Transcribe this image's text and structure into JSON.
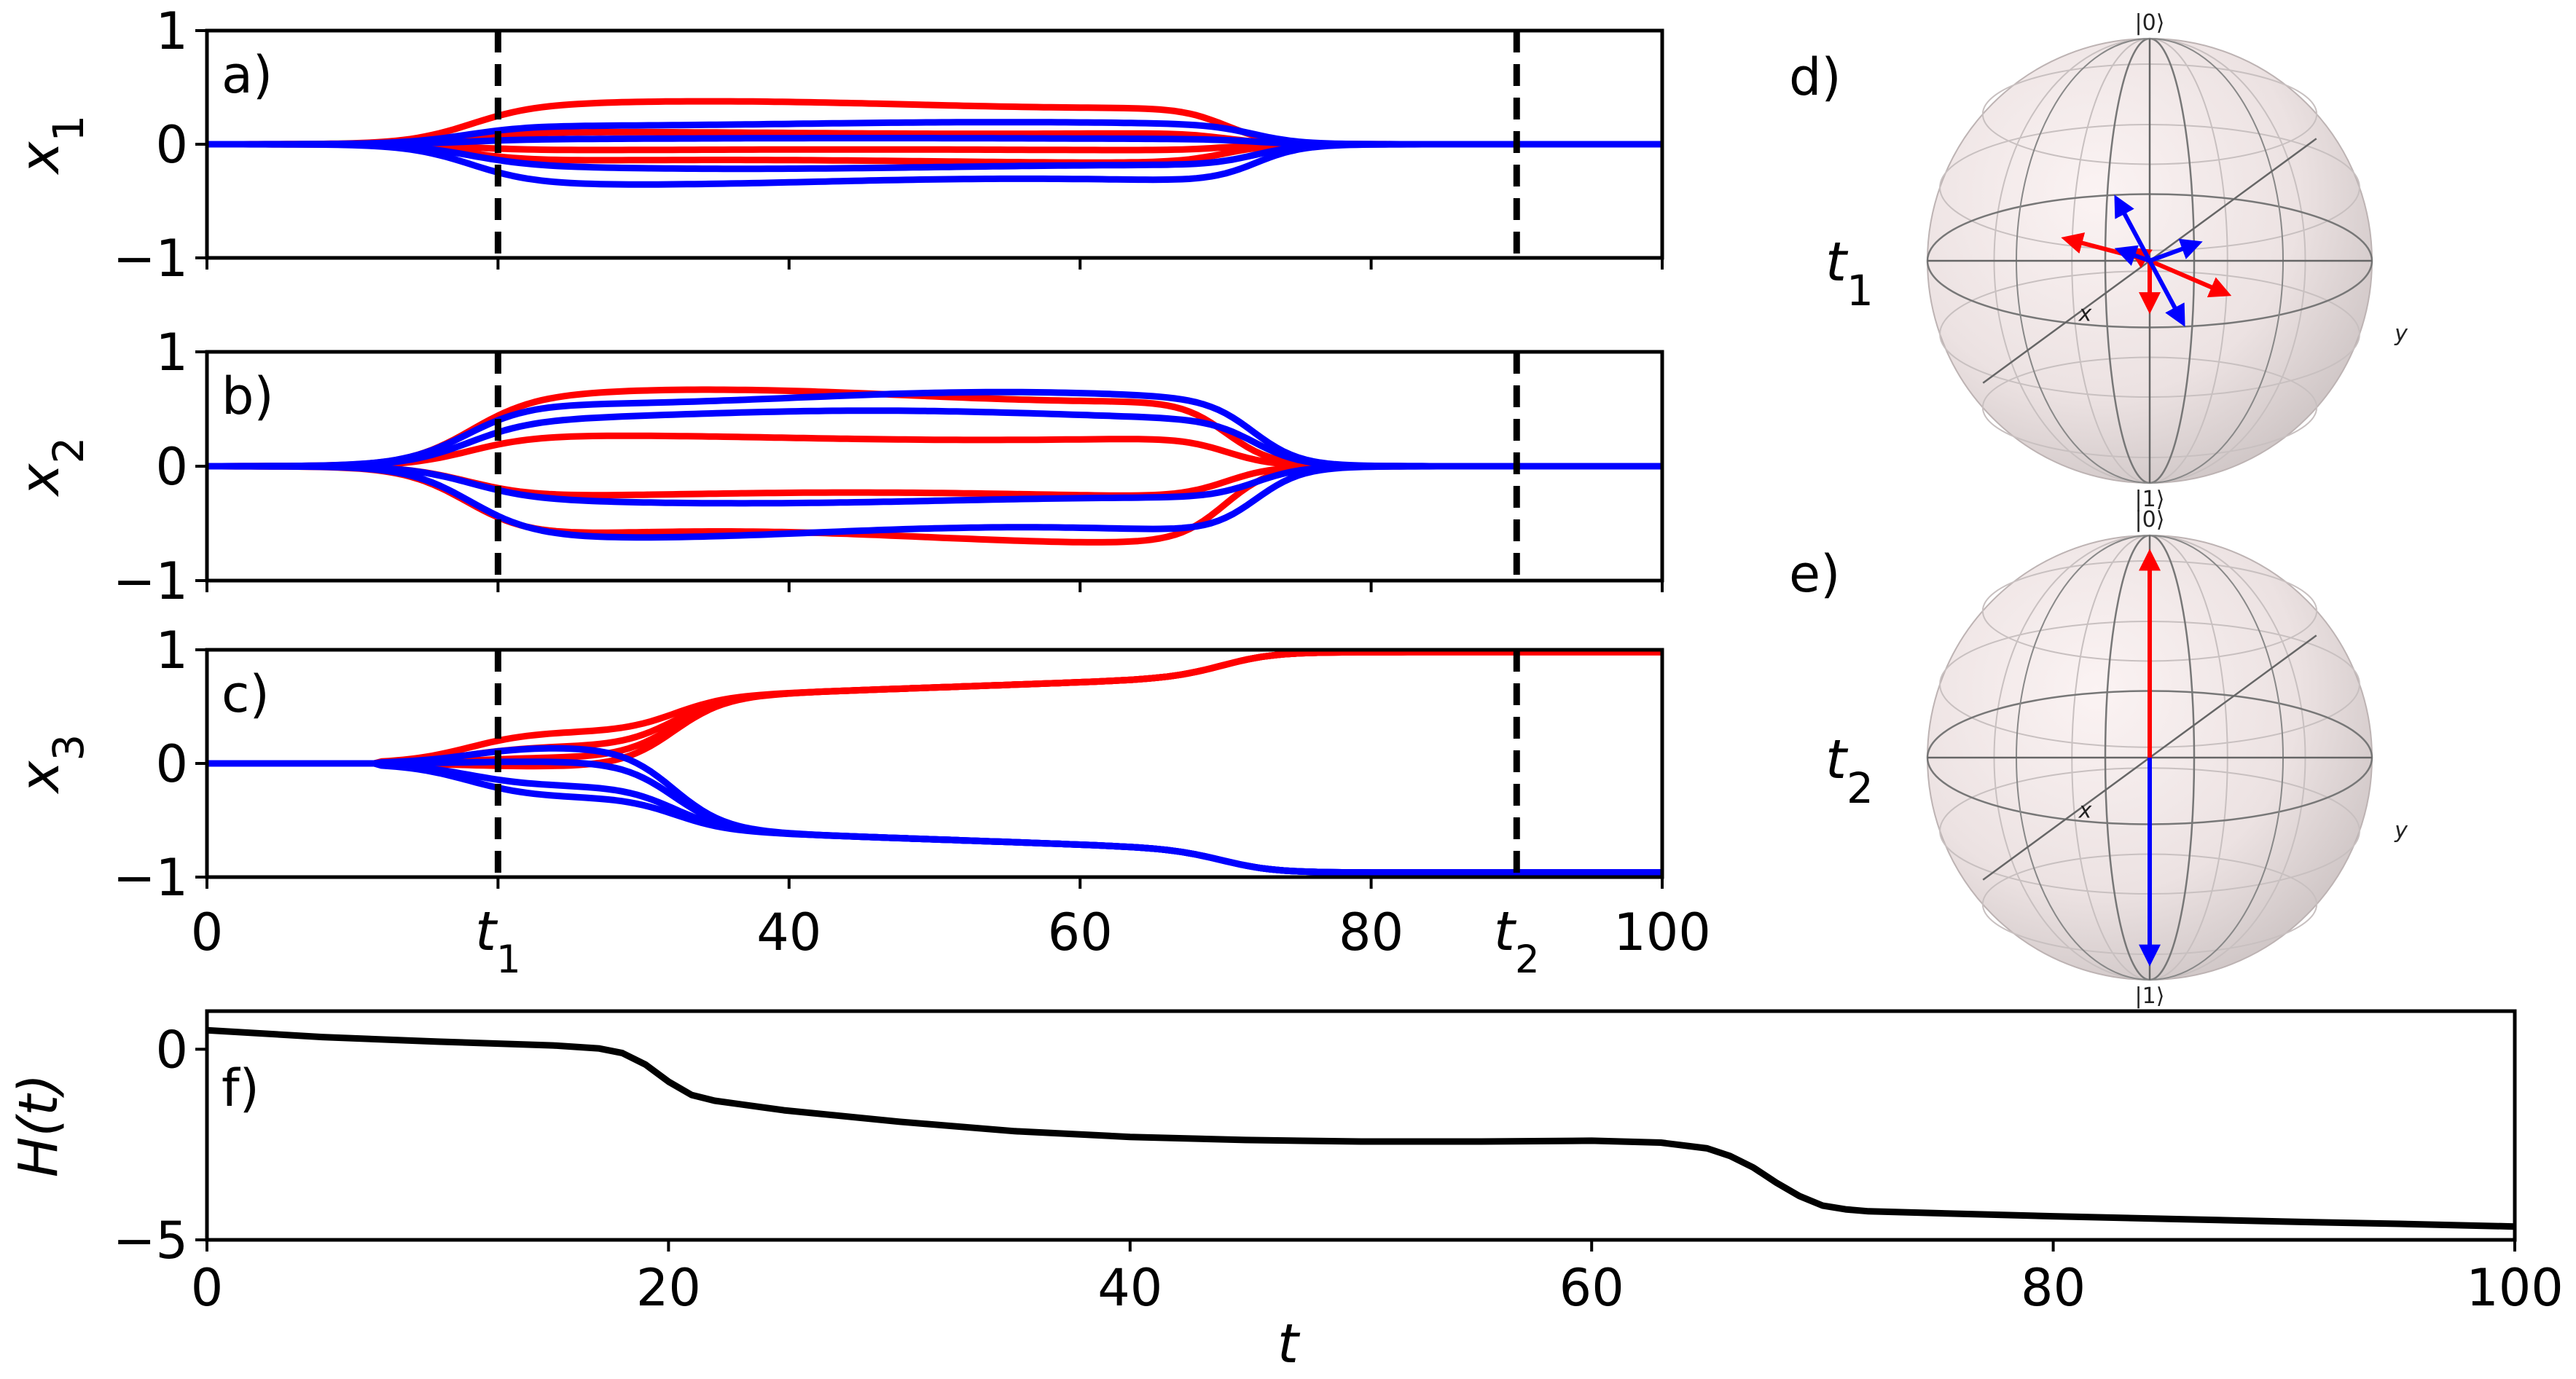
{
  "chart_data": [
    {
      "panel": "a)",
      "type": "line",
      "ylabel_base": "x",
      "ylabel_sub": "1",
      "xlim": [
        0,
        100
      ],
      "ylim": [
        -1,
        1
      ],
      "yticks": [
        "1",
        "0",
        "−1"
      ],
      "vlines": [
        20,
        90
      ],
      "series": [
        {
          "color": "#ff0000",
          "final": 0.0,
          "hold": 0.35,
          "settle": 70
        },
        {
          "color": "#ff0000",
          "final": 0.0,
          "hold": 0.1,
          "settle": 70
        },
        {
          "color": "#ff0000",
          "final": 0.0,
          "hold": -0.05,
          "settle": 70
        },
        {
          "color": "#ff0000",
          "final": 0.0,
          "hold": -0.15,
          "settle": 70
        },
        {
          "color": "#0000ff",
          "final": 0.0,
          "hold": 0.18,
          "settle": 72
        },
        {
          "color": "#0000ff",
          "final": 0.0,
          "hold": 0.05,
          "settle": 72
        },
        {
          "color": "#0000ff",
          "final": 0.0,
          "hold": -0.2,
          "settle": 72
        },
        {
          "color": "#0000ff",
          "final": 0.0,
          "hold": -0.33,
          "settle": 72
        }
      ]
    },
    {
      "panel": "b)",
      "type": "line",
      "ylabel_base": "x",
      "ylabel_sub": "2",
      "xlim": [
        0,
        100
      ],
      "ylim": [
        -1,
        1
      ],
      "yticks": [
        "1",
        "0",
        "−1"
      ],
      "vlines": [
        20,
        90
      ],
      "series": [
        {
          "color": "#ff0000",
          "final": 0.0,
          "hold": 0.62,
          "settle": 70
        },
        {
          "color": "#ff0000",
          "final": 0.0,
          "hold": 0.25,
          "settle": 70
        },
        {
          "color": "#ff0000",
          "final": 0.0,
          "hold": -0.25,
          "settle": 70
        },
        {
          "color": "#ff0000",
          "final": 0.0,
          "hold": -0.62,
          "settle": 70
        },
        {
          "color": "#0000ff",
          "final": 0.0,
          "hold": 0.6,
          "settle": 72
        },
        {
          "color": "#0000ff",
          "final": 0.0,
          "hold": 0.45,
          "settle": 72
        },
        {
          "color": "#0000ff",
          "final": 0.0,
          "hold": -0.3,
          "settle": 72
        },
        {
          "color": "#0000ff",
          "final": 0.0,
          "hold": -0.58,
          "settle": 72
        }
      ]
    },
    {
      "panel": "c)",
      "type": "line",
      "ylabel_base": "x",
      "ylabel_sub": "3",
      "xlim": [
        0,
        100
      ],
      "ylim": [
        -1,
        1
      ],
      "yticks": [
        "1",
        "0",
        "−1"
      ],
      "xticks": [
        "0",
        "t1",
        "40",
        "60",
        "80",
        "t2",
        "100"
      ],
      "xtick_values": [
        0,
        20,
        40,
        60,
        80,
        90,
        100
      ],
      "vlines": [
        20,
        90
      ],
      "series": [
        {
          "color": "#ff0000",
          "branch": 0.28,
          "final": 0.98
        },
        {
          "color": "#ff0000",
          "branch": 0.15,
          "final": 0.98
        },
        {
          "color": "#ff0000",
          "branch": 0.05,
          "final": 0.98
        },
        {
          "color": "#ff0000",
          "branch": -0.03,
          "final": 0.98
        },
        {
          "color": "#0000ff",
          "branch": 0.15,
          "final": -0.96
        },
        {
          "color": "#0000ff",
          "branch": 0.02,
          "final": -0.96
        },
        {
          "color": "#0000ff",
          "branch": -0.2,
          "final": -0.96
        },
        {
          "color": "#0000ff",
          "branch": -0.3,
          "final": -0.96
        }
      ]
    },
    {
      "panel": "f)",
      "type": "line",
      "ylabel": "H(t)",
      "xlabel": "t",
      "xlim": [
        0,
        100
      ],
      "ylim": [
        -5,
        1
      ],
      "yticks": [
        "0",
        "−5"
      ],
      "ytick_values": [
        0,
        -5
      ],
      "xticks": [
        "0",
        "20",
        "40",
        "60",
        "80",
        "100"
      ],
      "x": [
        0,
        5,
        10,
        15,
        17,
        18,
        19,
        20,
        21,
        22,
        25,
        30,
        35,
        40,
        45,
        50,
        55,
        60,
        63,
        65,
        66,
        67,
        68,
        69,
        70,
        71,
        72,
        75,
        80,
        85,
        90,
        95,
        100
      ],
      "y": [
        0.5,
        0.32,
        0.2,
        0.1,
        0.02,
        -0.1,
        -0.4,
        -0.85,
        -1.2,
        -1.35,
        -1.6,
        -1.9,
        -2.15,
        -2.3,
        -2.38,
        -2.42,
        -2.42,
        -2.4,
        -2.45,
        -2.6,
        -2.8,
        -3.1,
        -3.5,
        -3.85,
        -4.1,
        -4.2,
        -4.25,
        -4.3,
        -4.38,
        -4.45,
        -4.52,
        -4.58,
        -4.65
      ],
      "color": "#000000"
    }
  ],
  "bloch_spheres": [
    {
      "panel": "d)",
      "time_label_base": "t",
      "time_label_sub": "1",
      "ket0": "|0⟩",
      "ket1": "|1⟩",
      "axis_x": "x",
      "axis_y": "y",
      "arrows": [
        {
          "color": "#ff0000",
          "dx": -0.38,
          "dy": -0.1
        },
        {
          "color": "#ff0000",
          "dx": 0.35,
          "dy": 0.15
        },
        {
          "color": "#ff0000",
          "dx": 0.0,
          "dy": 0.22
        },
        {
          "color": "#ff0000",
          "dx": -0.08,
          "dy": -0.05
        },
        {
          "color": "#0000ff",
          "dx": -0.15,
          "dy": -0.28
        },
        {
          "color": "#0000ff",
          "dx": 0.22,
          "dy": -0.08
        },
        {
          "color": "#0000ff",
          "dx": 0.15,
          "dy": 0.28
        },
        {
          "color": "#0000ff",
          "dx": -0.14,
          "dy": -0.05
        }
      ]
    },
    {
      "panel": "e)",
      "time_label_base": "t",
      "time_label_sub": "2",
      "ket0": "|0⟩",
      "ket1": "|1⟩",
      "axis_x": "x",
      "axis_y": "y",
      "arrows": [
        {
          "color": "#ff0000",
          "dx": 0.0,
          "dy": -0.92
        },
        {
          "color": "#0000ff",
          "dx": 0.0,
          "dy": 0.92
        }
      ]
    }
  ]
}
